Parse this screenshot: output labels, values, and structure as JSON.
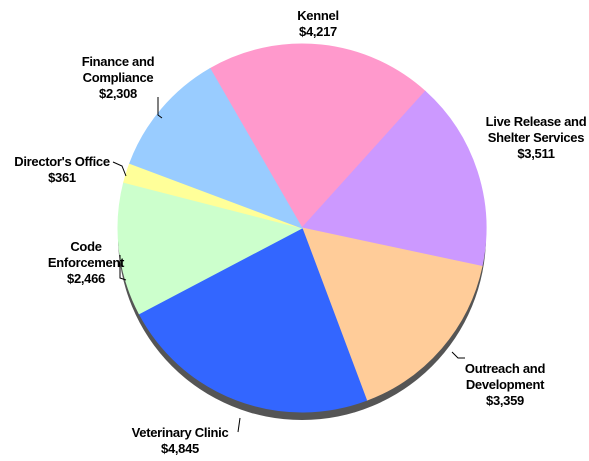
{
  "chart_data": {
    "type": "pie",
    "categories": [
      "Kennel",
      "Live Release and Shelter Services",
      "Outreach and Development",
      "Veterinary Clinic",
      "Code Enforcement",
      "Director's Office",
      "Finance and Compliance"
    ],
    "values": [
      4217,
      3511,
      3359,
      4845,
      2466,
      361,
      2308
    ],
    "value_labels": [
      "$4,217",
      "$3,511",
      "$3,359",
      "$4,845",
      "$2,466",
      "$361",
      "$2,308"
    ],
    "colors": [
      "#ff99cc",
      "#cc99ff",
      "#ffcc99",
      "#3366ff",
      "#ccffcc",
      "#ffff99",
      "#99ccff"
    ]
  }
}
